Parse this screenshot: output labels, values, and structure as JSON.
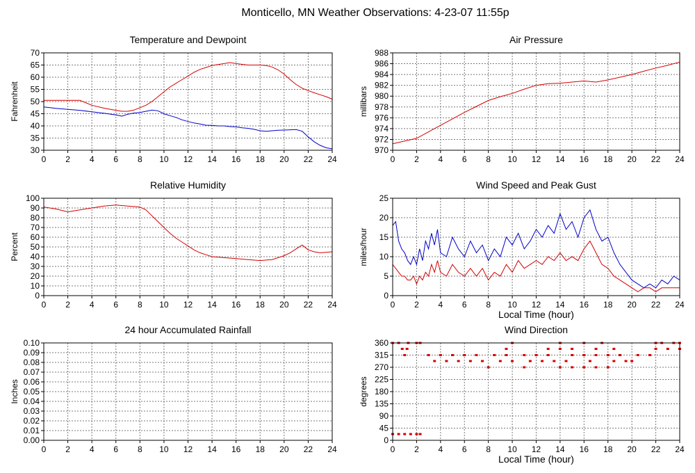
{
  "title": "Monticello, MN Weather Observations: 4-23-07 11:55p",
  "colors": {
    "red": "#d40000",
    "blue": "#0000c8",
    "grid": "#777777"
  },
  "chart_data": [
    {
      "id": "temperature",
      "type": "line",
      "title": "Temperature and Dewpoint",
      "xlabel": "",
      "ylabel": "Fahrenheit",
      "xlim": [
        0,
        24
      ],
      "ylim": [
        30,
        70
      ],
      "xticks": [
        0,
        2,
        4,
        6,
        8,
        10,
        12,
        14,
        16,
        18,
        20,
        22,
        24
      ],
      "yticks": [
        30,
        35,
        40,
        45,
        50,
        55,
        60,
        65,
        70
      ],
      "grid": true,
      "series": [
        {
          "color": "#d40000",
          "x": [
            0,
            1,
            2,
            3,
            4,
            5,
            6,
            6.5,
            7,
            7.5,
            8,
            8.5,
            9,
            9.5,
            10,
            10.5,
            11,
            11.5,
            12,
            12.5,
            13,
            13.5,
            14,
            14.5,
            15,
            15.5,
            16,
            16.5,
            17,
            17.5,
            18,
            18.5,
            19,
            19.5,
            20,
            20.5,
            21,
            21.5,
            22,
            22.5,
            23,
            23.5,
            24
          ],
          "y": [
            50.5,
            50.5,
            50.5,
            50.5,
            48.5,
            47.3,
            46.4,
            46.0,
            46.0,
            46.5,
            47.5,
            48.5,
            50.0,
            52.0,
            54.0,
            56.0,
            57.5,
            59.0,
            60.5,
            62.0,
            63.2,
            64.0,
            64.8,
            65.2,
            65.6,
            66.0,
            65.6,
            65.3,
            65.0,
            65.0,
            65.0,
            64.8,
            64.2,
            63.0,
            61.3,
            59.0,
            57.0,
            55.5,
            54.5,
            53.6,
            52.8,
            52.0,
            51.0
          ]
        },
        {
          "color": "#0000c8",
          "x": [
            0,
            1,
            2,
            3,
            4,
            5,
            6,
            6.5,
            7,
            7.5,
            8,
            8.5,
            9,
            9.5,
            10,
            10.5,
            11,
            11.5,
            12,
            12.5,
            13,
            13.5,
            14,
            14.5,
            15,
            15.5,
            16,
            16.5,
            17,
            17.5,
            18,
            18.5,
            19,
            19.5,
            20,
            20.5,
            21,
            21.5,
            22,
            22.5,
            23,
            23.5,
            24
          ],
          "y": [
            47.8,
            47.2,
            46.8,
            46.4,
            45.8,
            45.2,
            44.5,
            44.0,
            44.8,
            45.3,
            45.5,
            46.0,
            46.5,
            46.2,
            45.0,
            44.2,
            43.5,
            42.5,
            41.8,
            41.2,
            40.8,
            40.3,
            40.2,
            40.0,
            40.0,
            39.7,
            39.6,
            39.2,
            39.0,
            38.6,
            38.0,
            37.8,
            38.0,
            38.2,
            38.3,
            38.4,
            38.5,
            37.8,
            35.5,
            33.5,
            32.0,
            31.0,
            30.6
          ]
        }
      ]
    },
    {
      "id": "pressure",
      "type": "line",
      "title": "Air Pressure",
      "xlabel": "",
      "ylabel": "millibars",
      "xlim": [
        0,
        24
      ],
      "ylim": [
        970,
        988
      ],
      "xticks": [
        0,
        2,
        4,
        6,
        8,
        10,
        12,
        14,
        16,
        18,
        20,
        22,
        24
      ],
      "yticks": [
        970,
        972,
        974,
        976,
        978,
        980,
        982,
        984,
        986,
        988
      ],
      "grid": true,
      "series": [
        {
          "color": "#d40000",
          "x": [
            0,
            1,
            2,
            3,
            4,
            5,
            6,
            7,
            8,
            9,
            10,
            11,
            12,
            13,
            14,
            15,
            16,
            17,
            18,
            19,
            20,
            21,
            22,
            23,
            24
          ],
          "y": [
            971.2,
            971.7,
            972.2,
            973.4,
            974.6,
            975.8,
            977.0,
            978.1,
            979.2,
            979.9,
            980.5,
            981.3,
            982.0,
            982.3,
            982.4,
            982.6,
            982.8,
            982.6,
            983.0,
            983.5,
            984.0,
            984.6,
            985.2,
            985.7,
            986.3
          ]
        }
      ]
    },
    {
      "id": "humidity",
      "type": "line",
      "title": "Relative Humidity",
      "xlabel": "",
      "ylabel": "Percent",
      "xlim": [
        0,
        24
      ],
      "ylim": [
        0,
        100
      ],
      "xticks": [
        0,
        2,
        4,
        6,
        8,
        10,
        12,
        14,
        16,
        18,
        20,
        22,
        24
      ],
      "yticks": [
        0,
        10,
        20,
        30,
        40,
        50,
        60,
        70,
        80,
        90,
        100
      ],
      "grid": true,
      "series": [
        {
          "color": "#d40000",
          "x": [
            0,
            1,
            2,
            3,
            4,
            5,
            6,
            7,
            8,
            8.5,
            9,
            9.5,
            10,
            10.5,
            11,
            11.5,
            12,
            12.5,
            13,
            13.5,
            14,
            15,
            16,
            17,
            18,
            19,
            20,
            20.5,
            21,
            21.5,
            22,
            22.5,
            23,
            24
          ],
          "y": [
            91,
            89,
            86,
            88,
            90,
            92,
            93,
            92,
            91,
            88,
            82,
            76,
            70,
            64,
            59,
            55,
            51,
            47,
            44,
            42,
            40,
            39,
            38,
            37,
            36,
            37,
            41,
            44,
            48,
            52,
            47,
            45,
            44,
            45
          ]
        }
      ]
    },
    {
      "id": "wind_speed",
      "type": "line",
      "title": "Wind Speed and Peak Gust",
      "xlabel": "Local Time (hour)",
      "ylabel": "miles/hour",
      "xlim": [
        0,
        24
      ],
      "ylim": [
        0,
        25
      ],
      "xticks": [
        0,
        2,
        4,
        6,
        8,
        10,
        12,
        14,
        16,
        18,
        20,
        22,
        24
      ],
      "yticks": [
        0,
        5,
        10,
        15,
        20,
        25
      ],
      "grid": true,
      "series": [
        {
          "color": "#0000c8",
          "x": [
            0,
            0.25,
            0.5,
            0.75,
            1,
            1.25,
            1.5,
            1.75,
            2,
            2.25,
            2.5,
            2.75,
            3,
            3.25,
            3.5,
            3.75,
            4,
            4.5,
            5,
            5.5,
            6,
            6.5,
            7,
            7.5,
            8,
            8.5,
            9,
            9.5,
            10,
            10.5,
            11,
            11.5,
            12,
            12.5,
            13,
            13.5,
            14,
            14.5,
            15,
            15.5,
            16,
            16.5,
            17,
            17.5,
            18,
            18.5,
            19,
            19.5,
            20,
            20.5,
            21,
            21.5,
            22,
            22.5,
            23,
            23.5,
            24
          ],
          "y": [
            18,
            19,
            14,
            12,
            11,
            9,
            8,
            10,
            8,
            12,
            9,
            14,
            12,
            16,
            13,
            17,
            11,
            10,
            15,
            12,
            10,
            14,
            11,
            13,
            9,
            12,
            10,
            15,
            13,
            16,
            12,
            14,
            17,
            15,
            18,
            16,
            21,
            17,
            19,
            15,
            20,
            22,
            17,
            14,
            15,
            11,
            8,
            6,
            4,
            3,
            2,
            3,
            2,
            4,
            3,
            5,
            4
          ]
        },
        {
          "color": "#d40000",
          "x": [
            0,
            0.25,
            0.5,
            0.75,
            1,
            1.25,
            1.5,
            1.75,
            2,
            2.25,
            2.5,
            2.75,
            3,
            3.25,
            3.5,
            3.75,
            4,
            4.5,
            5,
            5.5,
            6,
            6.5,
            7,
            7.5,
            8,
            8.5,
            9,
            9.5,
            10,
            10.5,
            11,
            11.5,
            12,
            12.5,
            13,
            13.5,
            14,
            14.5,
            15,
            15.5,
            16,
            16.5,
            17,
            17.5,
            18,
            18.5,
            19,
            19.5,
            20,
            20.5,
            21,
            21.5,
            22,
            22.5,
            23,
            23.5,
            24
          ],
          "y": [
            8,
            7,
            6,
            5,
            5,
            4,
            4,
            5,
            3,
            5,
            4,
            6,
            5,
            8,
            6,
            9,
            6,
            5,
            8,
            6,
            5,
            7,
            5,
            7,
            4,
            6,
            5,
            8,
            6,
            9,
            7,
            8,
            9,
            8,
            10,
            9,
            11,
            9,
            10,
            9,
            12,
            14,
            11,
            8,
            7,
            5,
            4,
            3,
            2,
            1,
            2,
            2,
            1,
            2,
            2,
            2,
            2
          ]
        }
      ]
    },
    {
      "id": "rainfall",
      "type": "line",
      "title": "24 hour Accumulated Rainfall",
      "xlabel": "",
      "ylabel": "Inches",
      "xlim": [
        0,
        24
      ],
      "ylim": [
        0,
        0.1
      ],
      "xticks": [
        0,
        2,
        4,
        6,
        8,
        10,
        12,
        14,
        16,
        18,
        20,
        22,
        24
      ],
      "yticks": [
        "0.00",
        "0.01",
        "0.02",
        "0.03",
        "0.04",
        "0.05",
        "0.06",
        "0.07",
        "0.08",
        "0.09",
        "0.10"
      ],
      "grid": true,
      "series": [
        {
          "color": "#d40000",
          "x": [
            0,
            24
          ],
          "y": [
            0,
            0
          ]
        }
      ]
    },
    {
      "id": "wind_direction",
      "type": "scatter",
      "title": "Wind Direction",
      "xlabel": "Local Time (hour)",
      "ylabel": "degrees",
      "xlim": [
        0,
        24
      ],
      "ylim": [
        0,
        360
      ],
      "xticks": [
        0,
        2,
        4,
        6,
        8,
        10,
        12,
        14,
        16,
        18,
        20,
        22,
        24
      ],
      "yticks": [
        0,
        45,
        90,
        135,
        180,
        225,
        270,
        315,
        360
      ],
      "grid": true,
      "series": [
        {
          "color": "#d40000",
          "points": [
            [
              0,
              360
            ],
            [
              0.5,
              360
            ],
            [
              1.3,
              360
            ],
            [
              2,
              360
            ],
            [
              2.3,
              360
            ],
            [
              22,
              360
            ],
            [
              22.5,
              360
            ],
            [
              23.5,
              360
            ],
            [
              24,
              360
            ],
            [
              0,
              23
            ],
            [
              0.5,
              23
            ],
            [
              1,
              23
            ],
            [
              1.5,
              23
            ],
            [
              2,
              23
            ],
            [
              2.3,
              23
            ],
            [
              0.8,
              338
            ],
            [
              1.2,
              338
            ],
            [
              22,
              338
            ],
            [
              23,
              338
            ],
            [
              24,
              338
            ],
            [
              1,
              315
            ],
            [
              3,
              315
            ],
            [
              4,
              315
            ],
            [
              5,
              315
            ],
            [
              6,
              315
            ],
            [
              7,
              315
            ],
            [
              8.5,
              315
            ],
            [
              9.5,
              315
            ],
            [
              11,
              315
            ],
            [
              12,
              315
            ],
            [
              13,
              315
            ],
            [
              15,
              315
            ],
            [
              16,
              315
            ],
            [
              17,
              315
            ],
            [
              18,
              315
            ],
            [
              19,
              315
            ],
            [
              20.5,
              315
            ],
            [
              21.5,
              315
            ],
            [
              3.5,
              293
            ],
            [
              4.5,
              293
            ],
            [
              5.5,
              293
            ],
            [
              6.5,
              293
            ],
            [
              7.5,
              293
            ],
            [
              9,
              293
            ],
            [
              10,
              293
            ],
            [
              11.5,
              293
            ],
            [
              12.5,
              293
            ],
            [
              13.5,
              293
            ],
            [
              14.5,
              293
            ],
            [
              16.5,
              293
            ],
            [
              18.5,
              293
            ],
            [
              19.5,
              293
            ],
            [
              20,
              293
            ],
            [
              8,
              270
            ],
            [
              11,
              270
            ],
            [
              14,
              270
            ],
            [
              15,
              270
            ],
            [
              16,
              270
            ],
            [
              17,
              270
            ],
            [
              18,
              270
            ],
            [
              9.5,
              338
            ],
            [
              13,
              338
            ],
            [
              14,
              338
            ],
            [
              15,
              338
            ],
            [
              17,
              338
            ],
            [
              18.5,
              338
            ],
            [
              10,
              360
            ],
            [
              14,
              360
            ],
            [
              16,
              360
            ],
            [
              17.5,
              360
            ]
          ]
        }
      ]
    }
  ]
}
